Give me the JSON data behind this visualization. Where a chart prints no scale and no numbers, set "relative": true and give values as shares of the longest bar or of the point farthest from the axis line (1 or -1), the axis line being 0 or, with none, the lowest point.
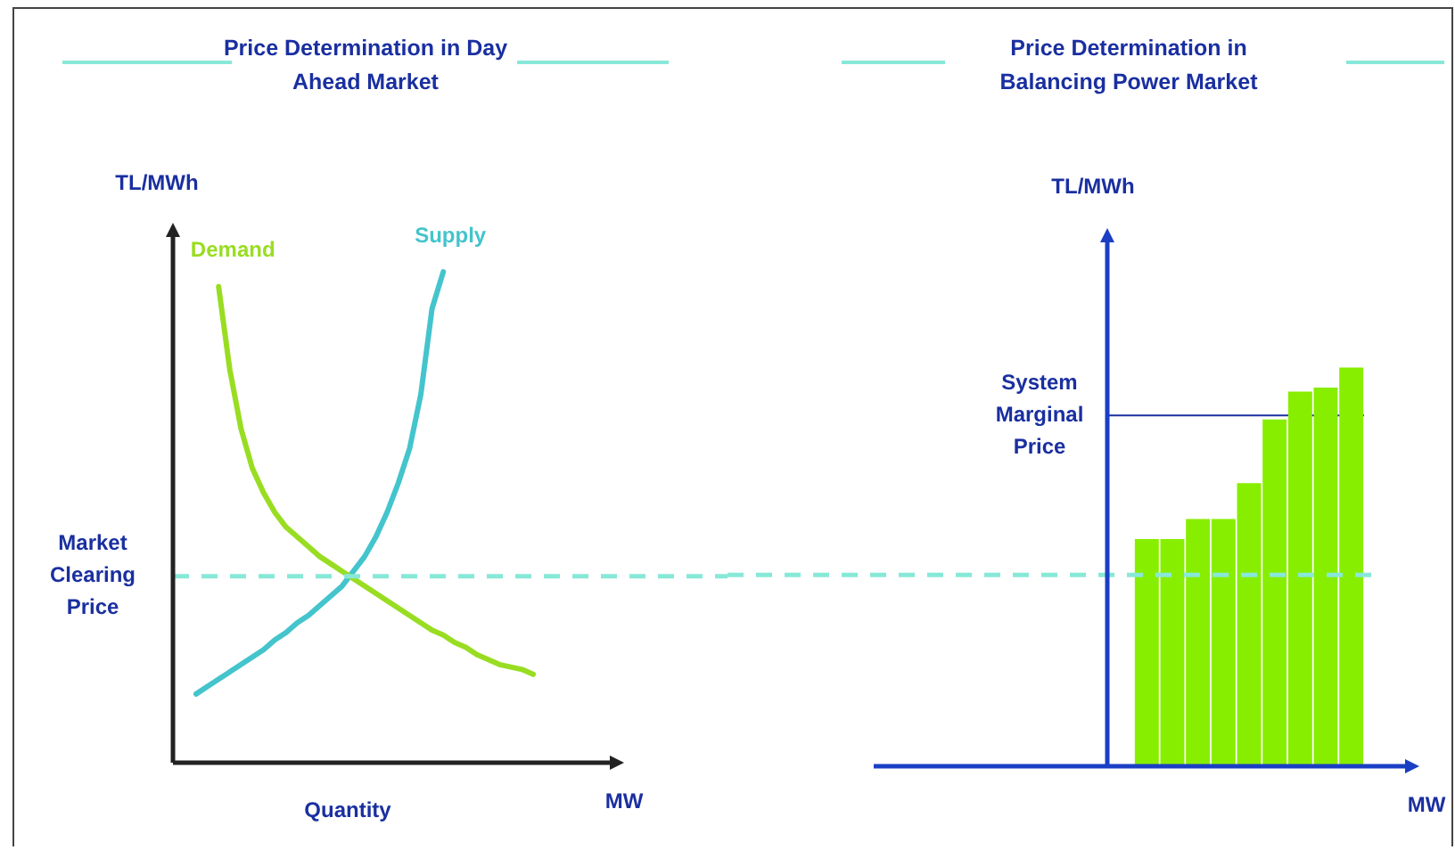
{
  "chart_data": [
    {
      "type": "line",
      "title": "Price Determination in Day Ahead Market",
      "xlabel": "Quantity",
      "ylabel": "TL/MWh",
      "relative": true,
      "marker": "none",
      "line_style": "solid",
      "categories": [
        null,
        null,
        null,
        null,
        null,
        null,
        null,
        null,
        null,
        null,
        null,
        null,
        null,
        null,
        null,
        null,
        null,
        null,
        null,
        null,
        null,
        null,
        null,
        null,
        null,
        null,
        null,
        null,
        null,
        null,
        null
      ],
      "series": [
        {
          "name": "Demand",
          "color": "#99dd22",
          "values": [
            null,
            null,
            0.97,
            0.8,
            0.68,
            0.6,
            0.55,
            0.51,
            0.48,
            0.46,
            0.44,
            0.42,
            0.405,
            0.39,
            0.375,
            0.36,
            0.345,
            0.33,
            0.315,
            0.3,
            0.285,
            0.27,
            0.26,
            0.245,
            0.235,
            0.22,
            0.21,
            0.2,
            0.195,
            0.19,
            0.18
          ]
        },
        {
          "name": "Supply",
          "color": "#44c4cc",
          "values": [
            0.14,
            0.155,
            0.17,
            0.185,
            0.2,
            0.215,
            0.23,
            0.25,
            0.265,
            0.285,
            0.3,
            0.32,
            0.34,
            0.36,
            0.39,
            0.42,
            0.46,
            0.51,
            0.57,
            0.64,
            0.75,
            0.925,
            1,
            null,
            null,
            null,
            null,
            null,
            null,
            null,
            null
          ]
        }
      ],
      "ref_lines": [
        {
          "axis": "y",
          "value": 0.38,
          "label": "Market Clearing Price",
          "color": "#88e8d8",
          "line_style": "dashed"
        }
      ],
      "annotations": [
        "MW"
      ]
    },
    {
      "type": "bar",
      "title": "Price Determination in Balancing Power Market",
      "xlabel": "MW",
      "ylabel": "TL/MWh",
      "relative": true,
      "categories": [
        null,
        null,
        null,
        null,
        null,
        null,
        null,
        null,
        null
      ],
      "values": [
        0.57,
        0.57,
        0.62,
        0.62,
        0.71,
        0.87,
        0.94,
        0.95,
        1
      ],
      "color": "#88ee00",
      "ref_lines": [
        {
          "axis": "y",
          "value": 0.88,
          "label": "System Marginal Price",
          "color": "#1a2fa0",
          "line_style": "solid"
        },
        {
          "axis": "y",
          "value": 0.48,
          "color": "#88e8d8",
          "line_style": "dashed"
        }
      ]
    }
  ]
}
